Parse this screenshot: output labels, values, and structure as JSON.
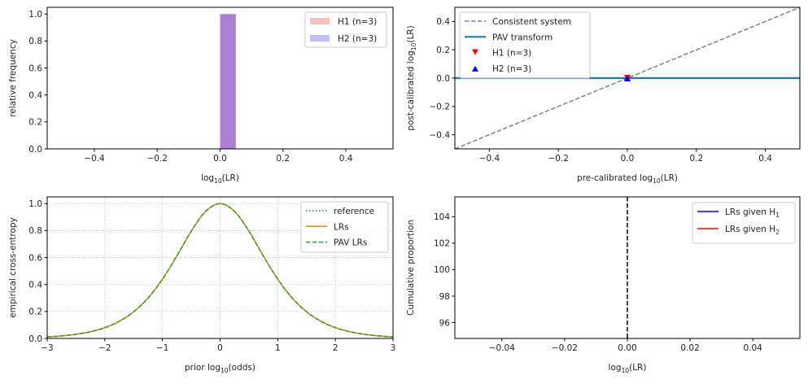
{
  "chart_data": [
    {
      "type": "bar",
      "xlabel": {
        "pre": "log",
        "sub": "10",
        "post": "(LR)"
      },
      "ylabel": "relative frequency",
      "xlim": [
        -0.55,
        0.55
      ],
      "ylim": [
        0,
        1.05
      ],
      "xticks": [
        -0.4,
        -0.2,
        0.0,
        0.2,
        0.4
      ],
      "xtick_labels": [
        "−0.4",
        "−0.2",
        "0.0",
        "0.2",
        "0.4"
      ],
      "yticks": [
        0.0,
        0.2,
        0.4,
        0.6,
        0.8,
        1.0
      ],
      "ytick_labels": [
        "0.0",
        "0.2",
        "0.4",
        "0.6",
        "0.8",
        "1.0"
      ],
      "grid": false,
      "legend_position": "top-right",
      "series": [
        {
          "name": "H1 (n=3)",
          "color": "#ff0000",
          "alpha": 0.25,
          "bins": [
            [
              0.0,
              0.05
            ]
          ],
          "values": [
            1.0
          ]
        },
        {
          "name": "H2 (n=3)",
          "color": "#0000ff",
          "alpha": 0.25,
          "bins": [
            [
              0.0,
              0.05
            ]
          ],
          "values": [
            1.0
          ]
        }
      ],
      "overlap_color": "#bf8fcf"
    },
    {
      "type": "scatter",
      "xlabel": {
        "pre": "pre-calibrated log",
        "sub": "10",
        "post": "(LR)"
      },
      "ylabel": {
        "pre": "post-calibrated log",
        "sub": "10",
        "post": "(LR)"
      },
      "xlim": [
        -0.5,
        0.5
      ],
      "ylim": [
        -0.5,
        0.5
      ],
      "xticks": [
        -0.4,
        -0.2,
        0.0,
        0.2,
        0.4
      ],
      "xtick_labels": [
        "−0.4",
        "−0.2",
        "0.0",
        "0.2",
        "0.4"
      ],
      "yticks": [
        -0.4,
        -0.2,
        0.0,
        0.2,
        0.4
      ],
      "ytick_labels": [
        "−0.4",
        "−0.2",
        "0.0",
        "0.2",
        "0.4"
      ],
      "grid": false,
      "legend_position": "top-left",
      "series": [
        {
          "name": "Consistent system",
          "kind": "line",
          "style": "dashed",
          "color": "#808080",
          "x": [
            -0.5,
            0.5
          ],
          "y": [
            -0.5,
            0.5
          ]
        },
        {
          "name": "PAV transform",
          "kind": "line",
          "style": "solid",
          "color": "#1f77b4",
          "x": [
            -0.5,
            0.5
          ],
          "y": [
            0,
            0
          ]
        },
        {
          "name": "H1 (n=3)",
          "kind": "marker",
          "marker": "triangle-down",
          "color": "#ff0000",
          "x": [
            0,
            0,
            0
          ],
          "y": [
            0,
            0,
            0
          ]
        },
        {
          "name": "H2 (n=3)",
          "kind": "marker",
          "marker": "triangle-up",
          "color": "#0000ff",
          "x": [
            0,
            0,
            0
          ],
          "y": [
            0,
            0,
            0
          ]
        }
      ]
    },
    {
      "type": "line",
      "xlabel": {
        "pre": "prior log",
        "sub": "10",
        "post": "(odds)"
      },
      "ylabel": "empirical cross-entropy",
      "xlim": [
        -3,
        3
      ],
      "ylim": [
        0,
        1.05
      ],
      "xticks": [
        -3,
        -2,
        -1,
        0,
        1,
        2,
        3
      ],
      "xtick_labels": [
        "−3",
        "−2",
        "−1",
        "0",
        "1",
        "2",
        "3"
      ],
      "yticks": [
        0.0,
        0.2,
        0.4,
        0.6,
        0.8,
        1.0
      ],
      "ytick_labels": [
        "0.0",
        "0.2",
        "0.4",
        "0.6",
        "0.8",
        "1.0"
      ],
      "grid": true,
      "legend_position": "top-right",
      "x": [
        -3,
        -2.75,
        -2.5,
        -2.25,
        -2,
        -1.75,
        -1.5,
        -1.25,
        -1,
        -0.75,
        -0.5,
        -0.25,
        0,
        0.25,
        0.5,
        0.75,
        1,
        1.25,
        1.5,
        1.75,
        2,
        2.25,
        2.5,
        2.75,
        3
      ],
      "series": [
        {
          "name": "reference",
          "style": "dotted",
          "color": "#1f77b4",
          "values": [
            0.011,
            0.019,
            0.031,
            0.05,
            0.08,
            0.127,
            0.198,
            0.3,
            0.44,
            0.612,
            0.796,
            0.943,
            1.0,
            0.943,
            0.796,
            0.612,
            0.44,
            0.3,
            0.198,
            0.127,
            0.08,
            0.05,
            0.031,
            0.019,
            0.011
          ]
        },
        {
          "name": "LRs",
          "style": "solid",
          "color": "#ff7f0e",
          "values": [
            0.011,
            0.019,
            0.031,
            0.05,
            0.08,
            0.127,
            0.198,
            0.3,
            0.44,
            0.612,
            0.796,
            0.943,
            1.0,
            0.943,
            0.796,
            0.612,
            0.44,
            0.3,
            0.198,
            0.127,
            0.08,
            0.05,
            0.031,
            0.019,
            0.011
          ]
        },
        {
          "name": "PAV LRs",
          "style": "dashed",
          "color": "#2ca02c",
          "values": [
            0.011,
            0.019,
            0.031,
            0.05,
            0.08,
            0.127,
            0.198,
            0.3,
            0.44,
            0.612,
            0.796,
            0.943,
            1.0,
            0.943,
            0.796,
            0.612,
            0.44,
            0.3,
            0.198,
            0.127,
            0.08,
            0.05,
            0.031,
            0.019,
            0.011
          ]
        }
      ]
    },
    {
      "type": "line",
      "xlabel": {
        "pre": "log",
        "sub": "10",
        "post": "(LR)"
      },
      "ylabel": "Cumulative proportion",
      "xlim": [
        -0.055,
        0.055
      ],
      "ylim": [
        94.8,
        105.5
      ],
      "xticks": [
        -0.04,
        -0.02,
        0.0,
        0.02,
        0.04
      ],
      "xtick_labels": [
        "−0.04",
        "−0.02",
        "0.00",
        "0.02",
        "0.04"
      ],
      "yticks": [
        96,
        98,
        100,
        102,
        104
      ],
      "ytick_labels": [
        "96",
        "98",
        "100",
        "102",
        "104"
      ],
      "grid": false,
      "legend_position": "top-right",
      "vline": {
        "x": 0,
        "style": "dashed",
        "color": "#000000"
      },
      "series": [
        {
          "name": {
            "pre": "LRs given H",
            "sub": "1"
          },
          "color": "#0000ff",
          "x": [],
          "y": []
        },
        {
          "name": {
            "pre": "LRs given H",
            "sub": "2"
          },
          "color": "#ff0000",
          "x": [],
          "y": []
        }
      ]
    }
  ]
}
